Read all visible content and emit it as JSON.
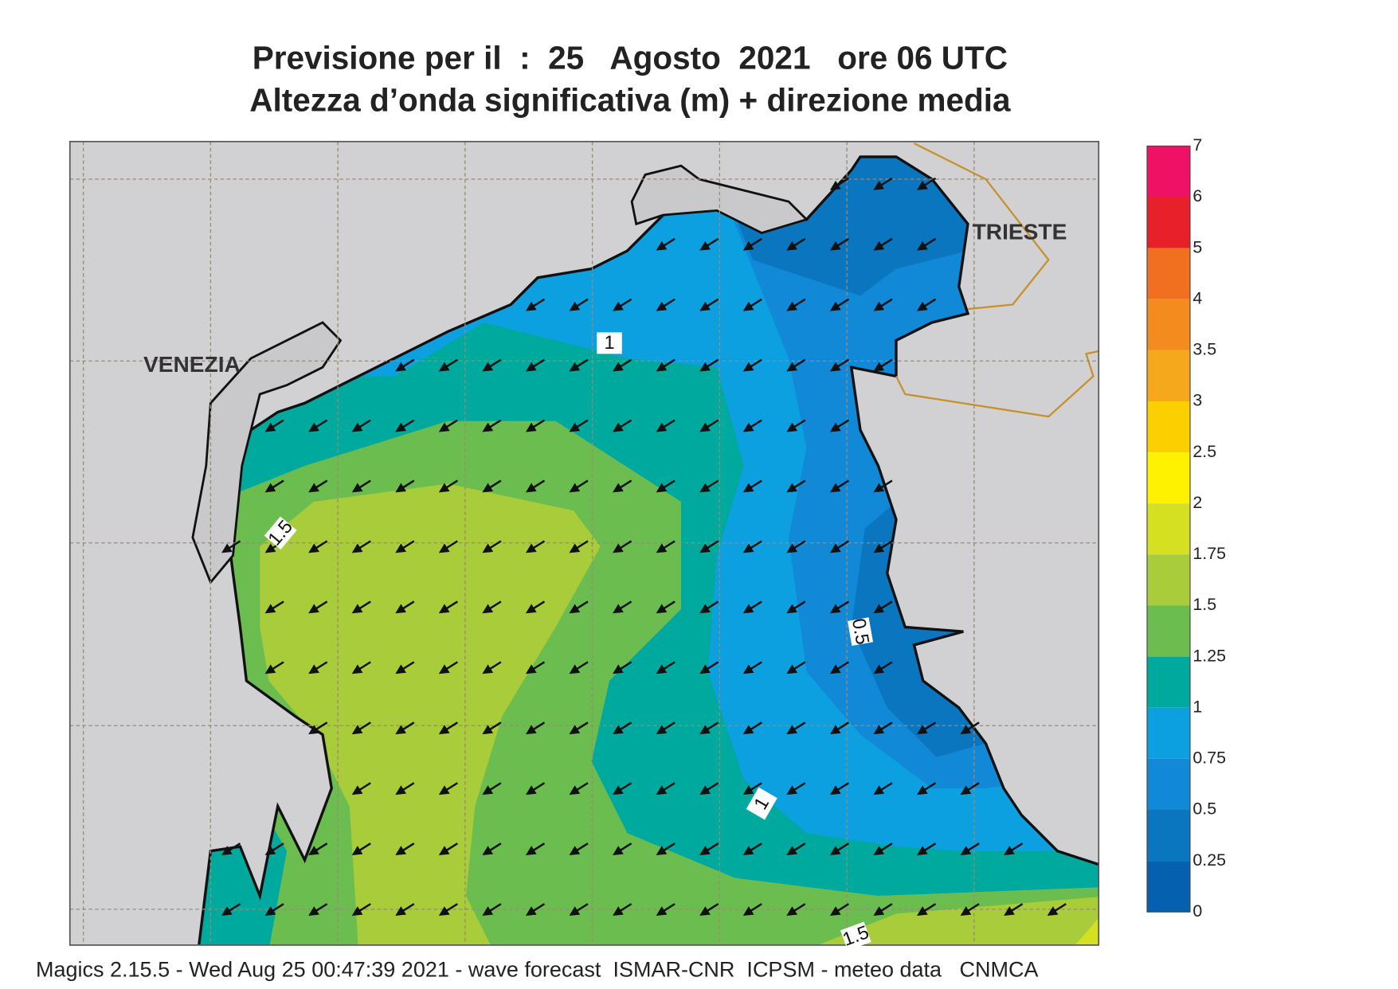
{
  "title": [
    "Previsione per il  :  25   Agosto  2021   ore 06 UTC",
    "Altezza d’onda significativa (m) + direzione media"
  ],
  "legend": {
    "levels": [
      "7",
      "6",
      "5",
      "4",
      "3.5",
      "3",
      "2.5",
      "2",
      "1.75",
      "1.5",
      "1.25",
      "1",
      "0.75",
      "0.5",
      "0.25",
      "0"
    ],
    "colors": [
      "#ee1166",
      "#e8202a",
      "#f07020",
      "#f38b1e",
      "#f5a81c",
      "#fcd000",
      "#fff200",
      "#d4e021",
      "#a8cc3a",
      "#6cbd50",
      "#00a99d",
      "#0da0e0",
      "#1189d6",
      "#0a76c0",
      "#0560b0"
    ]
  },
  "places": [
    "VENEZIA",
    "TRIESTE"
  ],
  "contour_labels": [
    "1",
    "1.5",
    "0.5",
    "1",
    "1.5"
  ],
  "footer": "Magics 2.15.5 - Wed Aug 25 00:47:39 2021 - wave forecast  ISMAR-CNR  ICPSM - meteo data   CNMCA"
}
